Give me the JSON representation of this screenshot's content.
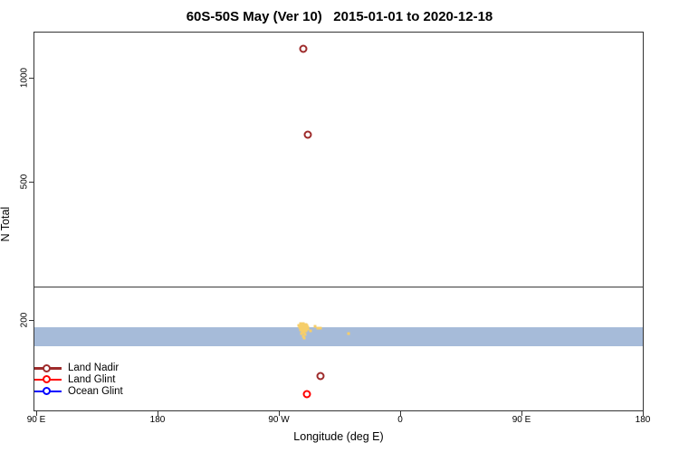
{
  "title": "60S-50S May (Ver 10)   2015-01-01 to 2020-12-18",
  "colors": {
    "land_nadir": "#9E2B2B",
    "land_glint": "#FF0000",
    "ocean_glint": "#0000FF",
    "yellow_points": "#F6CE69",
    "band_fill": "#A6BBD9",
    "frame": "#333333",
    "reference_line": "#3a3a3a"
  },
  "chart_data": {
    "type": "scatter",
    "title": "60S-50S May (Ver 10)   2015-01-01 to 2020-12-18",
    "xlabel": "Longitude (deg E)",
    "ylabel": "N Total",
    "x_scale": "linear",
    "y_scale": "log",
    "xlim_deg_e_continuous": [
      90,
      540
    ],
    "ylim": [
      109,
      1358
    ],
    "grid": false,
    "x_ticks": [
      {
        "lon": 90,
        "label": "90 E"
      },
      {
        "lon": 180,
        "label": "180"
      },
      {
        "lon": 270,
        "label": "90 W"
      },
      {
        "lon": 360,
        "label": "0"
      },
      {
        "lon": 450,
        "label": "90 E"
      },
      {
        "lon": 540,
        "label": "180"
      }
    ],
    "y_ticks": [
      {
        "value": 1000,
        "label": "1000"
      },
      {
        "value": 500,
        "label": "500"
      },
      {
        "value": 200,
        "label": "200"
      }
    ],
    "reference_line_n": 250,
    "band": {
      "n_min": 168,
      "n_max": 191
    },
    "legend": {
      "position": "bottom-left-inside",
      "entries": [
        "Land Nadir",
        "Land Glint",
        "Ocean Glint"
      ]
    },
    "series": [
      {
        "name": "Land Nadir",
        "marker": "open-circle",
        "color": "#9E2B2B",
        "points": [
          [
            288.3,
            1210
          ],
          [
            291.2,
            685
          ],
          [
            300.8,
            138
          ]
        ]
      },
      {
        "name": "Land Glint",
        "marker": "open-circle",
        "color": "#FF0000",
        "points": [
          [
            290.7,
            122
          ]
        ]
      },
      {
        "name": "Ocean Glint",
        "marker": "open-circle",
        "color": "#0000FF",
        "points": []
      },
      {
        "name": "unlabeled-yellow-cluster",
        "marker": "dot",
        "color": "#F6CE69",
        "points": [
          [
            285.8,
            195
          ],
          [
            287.9,
            195
          ],
          [
            289.9,
            194
          ],
          [
            284.5,
            193
          ],
          [
            286.5,
            193
          ],
          [
            288.5,
            192
          ],
          [
            290.5,
            193
          ],
          [
            285.2,
            191
          ],
          [
            287.2,
            190
          ],
          [
            289.2,
            190
          ],
          [
            291.2,
            191
          ],
          [
            285.8,
            187
          ],
          [
            287.9,
            187
          ],
          [
            289.9,
            186
          ],
          [
            287.2,
            185
          ],
          [
            288.5,
            184
          ],
          [
            286.5,
            183
          ],
          [
            289.2,
            182
          ],
          [
            287.9,
            180
          ],
          [
            288.5,
            177
          ],
          [
            291.8,
            188
          ],
          [
            293.2,
            186
          ],
          [
            297.2,
            192
          ],
          [
            299.2,
            190
          ],
          [
            301.2,
            189
          ],
          [
            322.0,
            183
          ]
        ]
      }
    ]
  }
}
